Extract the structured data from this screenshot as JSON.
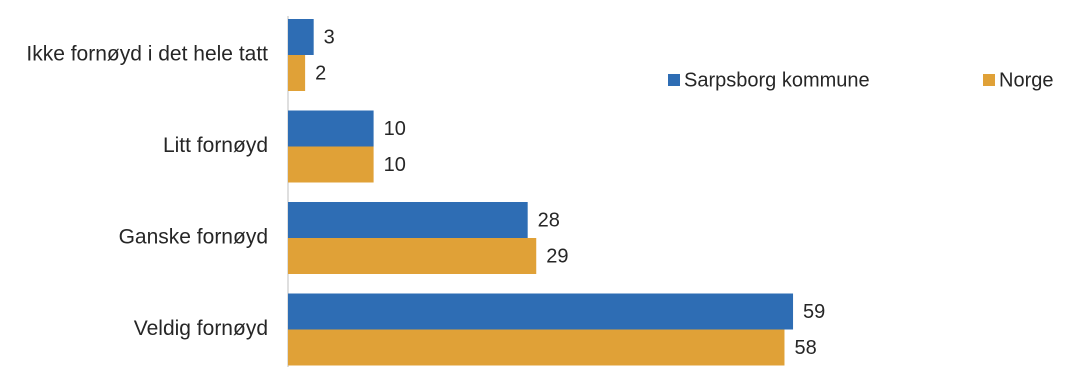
{
  "chart_data": {
    "type": "bar",
    "orientation": "horizontal",
    "categories": [
      "Ikke fornøyd i det hele tatt",
      "Litt fornøyd",
      "Ganske fornøyd",
      "Veldig fornøyd"
    ],
    "series": [
      {
        "name": "Sarpsborg kommune",
        "color": "#2e6db4",
        "values": [
          3,
          10,
          28,
          59
        ]
      },
      {
        "name": "Norge",
        "color": "#e0a137",
        "values": [
          2,
          10,
          29,
          58
        ]
      }
    ],
    "title": "",
    "xlabel": "",
    "ylabel": "",
    "xlim": [
      0,
      60
    ],
    "grid": false,
    "legend_position": "top-right"
  }
}
